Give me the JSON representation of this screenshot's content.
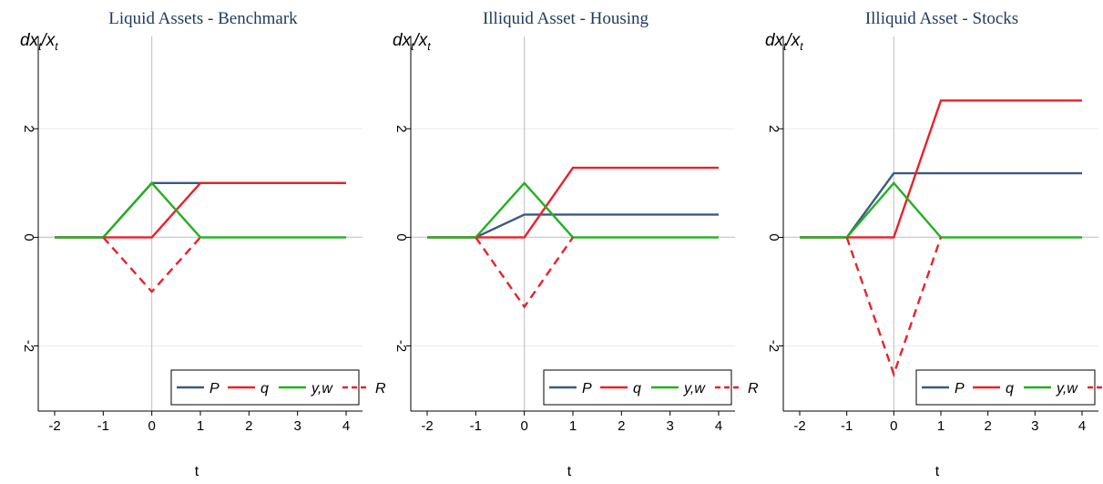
{
  "chart_data": [
    {
      "type": "line",
      "title": "Liquid Assets - Benchmark",
      "ylabel": "dx_t/x_t",
      "xlabel": "t",
      "xlim": [
        -2,
        4
      ],
      "ylim": [
        -3.2,
        3.7
      ],
      "xticks": [
        "-2",
        "-1",
        "0",
        "1",
        "2",
        "3",
        "4"
      ],
      "yticks": [
        "2",
        "0",
        "-2"
      ],
      "grid": true,
      "legend_position": "bottom-right",
      "series": [
        {
          "name": "P",
          "color": "#3a5a80",
          "style": "solid",
          "points": [
            [
              -2,
              0
            ],
            [
              -1,
              0
            ],
            [
              0,
              1
            ],
            [
              1,
              1
            ],
            [
              4,
              1
            ]
          ]
        },
        {
          "name": "q",
          "color": "#e8222a",
          "style": "solid",
          "points": [
            [
              -2,
              0
            ],
            [
              -1,
              0
            ],
            [
              0,
              0
            ],
            [
              1,
              1
            ],
            [
              4,
              1
            ]
          ]
        },
        {
          "name": "y,w",
          "color": "#22b022",
          "style": "solid",
          "points": [
            [
              -2,
              0
            ],
            [
              -1,
              0
            ],
            [
              0,
              1
            ],
            [
              1,
              0
            ],
            [
              4,
              0
            ]
          ]
        },
        {
          "name": "R",
          "color": "#e8222a",
          "style": "dashed",
          "points": [
            [
              -1,
              0
            ],
            [
              0,
              -1
            ],
            [
              1,
              0
            ]
          ]
        }
      ]
    },
    {
      "type": "line",
      "title": "Illiquid Asset - Housing",
      "ylabel": "dx_t/x_t",
      "xlabel": "t",
      "xlim": [
        -2,
        4
      ],
      "ylim": [
        -3.2,
        3.7
      ],
      "xticks": [
        "-2",
        "-1",
        "0",
        "1",
        "2",
        "3",
        "4"
      ],
      "yticks": [
        "2",
        "0",
        "-2"
      ],
      "grid": true,
      "legend_position": "bottom-right",
      "series": [
        {
          "name": "P",
          "color": "#3a5a80",
          "style": "solid",
          "points": [
            [
              -2,
              0
            ],
            [
              -1,
              0
            ],
            [
              0,
              0.42
            ],
            [
              1,
              0.42
            ],
            [
              4,
              0.42
            ]
          ]
        },
        {
          "name": "q",
          "color": "#e8222a",
          "style": "solid",
          "points": [
            [
              -2,
              0
            ],
            [
              -1,
              0
            ],
            [
              0,
              0
            ],
            [
              1,
              1.28
            ],
            [
              4,
              1.28
            ]
          ]
        },
        {
          "name": "y,w",
          "color": "#22b022",
          "style": "solid",
          "points": [
            [
              -2,
              0
            ],
            [
              -1,
              0
            ],
            [
              0,
              1
            ],
            [
              1,
              0
            ],
            [
              4,
              0
            ]
          ]
        },
        {
          "name": "R",
          "color": "#e8222a",
          "style": "dashed",
          "points": [
            [
              -1,
              0
            ],
            [
              0,
              -1.28
            ],
            [
              1,
              0
            ]
          ]
        }
      ]
    },
    {
      "type": "line",
      "title": "Illiquid Asset - Stocks",
      "ylabel": "dx_t/x_t",
      "xlabel": "t",
      "xlim": [
        -2,
        4
      ],
      "ylim": [
        -3.2,
        3.7
      ],
      "xticks": [
        "-2",
        "-1",
        "0",
        "1",
        "2",
        "3",
        "4"
      ],
      "yticks": [
        "2",
        "0",
        "-2"
      ],
      "grid": true,
      "legend_position": "bottom-right",
      "series": [
        {
          "name": "P",
          "color": "#3a5a80",
          "style": "solid",
          "points": [
            [
              -2,
              0
            ],
            [
              -1,
              0
            ],
            [
              0,
              1.18
            ],
            [
              1,
              1.18
            ],
            [
              4,
              1.18
            ]
          ]
        },
        {
          "name": "q",
          "color": "#e8222a",
          "style": "solid",
          "points": [
            [
              -2,
              0
            ],
            [
              -1,
              0
            ],
            [
              0,
              0
            ],
            [
              1,
              2.52
            ],
            [
              4,
              2.52
            ]
          ]
        },
        {
          "name": "y,w",
          "color": "#22b022",
          "style": "solid",
          "points": [
            [
              -2,
              0
            ],
            [
              -1,
              0
            ],
            [
              0,
              1
            ],
            [
              1,
              0
            ],
            [
              4,
              0
            ]
          ]
        },
        {
          "name": "R",
          "color": "#e8222a",
          "style": "dashed",
          "points": [
            [
              -1,
              0
            ],
            [
              0,
              -2.52
            ],
            [
              1,
              0
            ]
          ]
        }
      ]
    }
  ]
}
